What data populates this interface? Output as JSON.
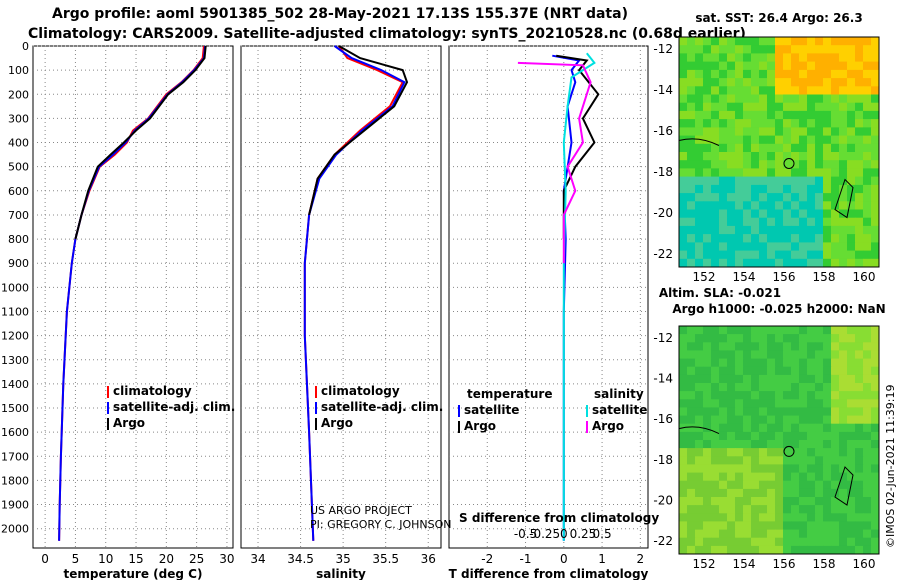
{
  "header": {
    "title_line1": "Argo profile: aoml 5901385_502 28-May-2021 17.13S 155.37E (NRT data)",
    "title_line2": "Climatology: CARS2009. Satellite-adjusted climatology: synTS_20210528.nc (0.68d earlier)"
  },
  "chart_data": [
    {
      "type": "line",
      "panel": "temperature",
      "xlabel": "temperature (deg C)",
      "ylabel": "",
      "xlim": [
        -2,
        31
      ],
      "ylim": [
        2080,
        0
      ],
      "xticks": [
        "0",
        "5",
        "10",
        "15",
        "20",
        "25",
        "30"
      ],
      "yticks": [
        "0",
        "100",
        "200",
        "300",
        "400",
        "500",
        "600",
        "700",
        "800",
        "900",
        "1000",
        "1100",
        "1200",
        "1300",
        "1400",
        "1500",
        "1600",
        "1700",
        "1800",
        "1900",
        "2000"
      ],
      "grid": true,
      "legend": {
        "placement": "lower-right",
        "entries": [
          "climatology",
          "satellite-adj. clim.",
          "Argo"
        ]
      },
      "series": [
        {
          "name": "climatology",
          "color": "#ff0000",
          "x": [
            26.2,
            26.0,
            24.5,
            22.5,
            20.0,
            17.0,
            14.5,
            13.5,
            11.5,
            9.0,
            7.3,
            6.0,
            5.0,
            4.4,
            3.6,
            3.0,
            2.6,
            2.4,
            2.3
          ],
          "y": [
            0,
            50,
            100,
            150,
            200,
            300,
            350,
            400,
            450,
            500,
            600,
            700,
            800,
            900,
            1100,
            1400,
            1700,
            1900,
            2050
          ]
        },
        {
          "name": "satellite-adj. clim.",
          "color": "#0000ff",
          "x": [
            26.4,
            26.2,
            24.6,
            22.6,
            20.2,
            17.1,
            14.8,
            13.3,
            11.2,
            8.9,
            7.2,
            6.0,
            5.0,
            4.4,
            3.6,
            3.0,
            2.6,
            2.4,
            2.3
          ],
          "y": [
            0,
            50,
            100,
            150,
            200,
            300,
            350,
            400,
            450,
            500,
            600,
            700,
            800,
            900,
            1100,
            1400,
            1700,
            1900,
            2050
          ]
        },
        {
          "name": "Argo",
          "color": "#000000",
          "x": [
            26.5,
            26.3,
            24.8,
            22.8,
            20.3,
            17.3,
            15.0,
            13.0,
            10.8,
            8.7,
            7.1,
            6.0,
            5.0
          ],
          "y": [
            0,
            50,
            100,
            150,
            200,
            300,
            350,
            400,
            450,
            500,
            600,
            700,
            800
          ]
        }
      ]
    },
    {
      "type": "line",
      "panel": "salinity",
      "xlabel": "salinity",
      "xlim": [
        33.8,
        36.15
      ],
      "ylim": [
        2080,
        0
      ],
      "xticks": [
        "34",
        "34.5",
        "35",
        "35.5",
        "36"
      ],
      "grid": true,
      "legend": {
        "placement": "lower-right",
        "entries": [
          "climatology",
          "satellite-adj. clim.",
          "Argo"
        ]
      },
      "series": [
        {
          "name": "climatology",
          "color": "#ff0000",
          "x": [
            34.95,
            35.05,
            35.4,
            35.7,
            35.55,
            35.2,
            34.9,
            34.7,
            34.6,
            34.55,
            34.55,
            34.6,
            34.65
          ],
          "y": [
            0,
            50,
            100,
            150,
            250,
            350,
            450,
            550,
            700,
            900,
            1200,
            1600,
            2050
          ]
        },
        {
          "name": "satellite-adj. clim.",
          "color": "#0000ff",
          "x": [
            34.9,
            35.1,
            35.45,
            35.72,
            35.58,
            35.22,
            34.92,
            34.72,
            34.6,
            34.55,
            34.55,
            34.6,
            34.65
          ],
          "y": [
            0,
            50,
            100,
            150,
            250,
            350,
            450,
            550,
            700,
            900,
            1200,
            1600,
            2050
          ]
        },
        {
          "name": "Argo",
          "color": "#000000",
          "x": [
            34.95,
            35.2,
            35.7,
            35.75,
            35.6,
            35.25,
            34.9,
            34.7,
            34.6
          ],
          "y": [
            0,
            50,
            100,
            150,
            250,
            350,
            450,
            550,
            700
          ]
        }
      ]
    },
    {
      "type": "line",
      "panel": "difference",
      "xlabel": "T difference from climatology",
      "xlabel2": "S difference from climatology",
      "xlim": [
        -3,
        2.2
      ],
      "ylim": [
        2080,
        0
      ],
      "xticks": [
        "-2",
        "-1",
        "0",
        "1",
        "2"
      ],
      "xticks2": [
        "-0.5",
        "-0.25",
        "0",
        "0.25",
        "0.5"
      ],
      "grid": true,
      "legend": {
        "placement": "lower-left",
        "temperature_heading": "temperature",
        "salinity_heading": "salinity",
        "entries": [
          "satellite",
          "Argo",
          "satellite",
          "Argo"
        ]
      },
      "series": [
        {
          "name": "temperature satellite",
          "color": "#0000ff",
          "x": [
            -0.3,
            0.4,
            0.2,
            0.3,
            0.1,
            0.2,
            0.0,
            0.05,
            0.0,
            0.0
          ],
          "y": [
            40,
            60,
            100,
            150,
            250,
            400,
            600,
            800,
            1100,
            2050
          ]
        },
        {
          "name": "temperature Argo",
          "color": "#000000",
          "x": [
            -0.2,
            0.6,
            0.4,
            0.9,
            0.5,
            0.8,
            0.3,
            0.0,
            0.0
          ],
          "y": [
            40,
            60,
            100,
            200,
            300,
            400,
            500,
            600,
            800
          ]
        },
        {
          "name": "salinity satellite",
          "color": "#00e0e0",
          "x": [
            0.6,
            0.8,
            0.2,
            0.1,
            0.0,
            0.05,
            0.0,
            0.0
          ],
          "y": [
            30,
            70,
            130,
            250,
            400,
            600,
            900,
            2050
          ]
        },
        {
          "name": "salinity Argo",
          "color": "#ff00ff",
          "x": [
            -1.2,
            0.5,
            0.7,
            0.4,
            0.5,
            0.1,
            0.3,
            0.0,
            0.0
          ],
          "y": [
            70,
            80,
            150,
            300,
            400,
            500,
            600,
            700,
            900
          ]
        }
      ]
    },
    {
      "type": "heatmap",
      "panel": "sst map",
      "title": "sat. SST: 26.4 Argo: 26.3",
      "xticks": [
        "152",
        "154",
        "156",
        "158",
        "160"
      ],
      "yticks": [
        "-12",
        "-14",
        "-16",
        "-18",
        "-20",
        "-22"
      ]
    },
    {
      "type": "heatmap",
      "panel": "sla map",
      "title": "Altim. SLA: -0.021",
      "subtitle": "Argo h1000: -0.025 h2000: NaN",
      "xticks": [
        "152",
        "154",
        "156",
        "158",
        "160"
      ],
      "yticks": [
        "-12",
        "-14",
        "-16",
        "-18",
        "-20",
        "-22"
      ]
    }
  ],
  "credits": {
    "project": "US ARGO PROJECT",
    "pi": "PI: GREGORY C. JOHNSON"
  },
  "stamp": "©IMOS 02-Jun-2021 11:39:19"
}
